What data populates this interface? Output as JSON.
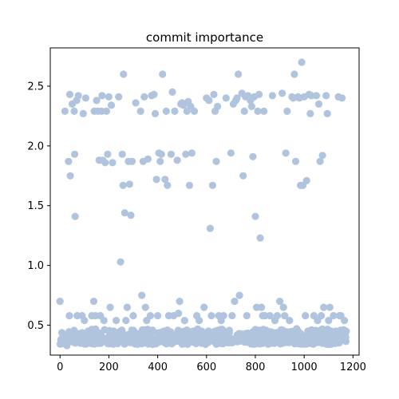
{
  "chart_data": {
    "type": "scatter",
    "title": "commit importance",
    "xlabel": "",
    "ylabel": "",
    "xlim": [
      -40,
      1225
    ],
    "ylim": [
      0.25,
      2.82
    ],
    "xticks": [
      0,
      200,
      400,
      600,
      800,
      1000,
      1200
    ],
    "xtick_labels": [
      "0",
      "200",
      "400",
      "600",
      "800",
      "1000",
      "1200"
    ],
    "yticks": [
      0.5,
      1.0,
      1.5,
      2.0,
      2.5
    ],
    "ytick_labels": [
      "0.5",
      "1.0",
      "1.5",
      "2.0",
      "2.5"
    ],
    "grid": false,
    "legend": "none",
    "marker_color": "#b0c4de",
    "series": [
      {
        "points": [
          [
            0,
            0.7
          ],
          [
            10,
            0.35
          ],
          [
            18,
            0.38
          ],
          [
            20,
            2.29
          ],
          [
            28,
            0.33
          ],
          [
            35,
            1.87
          ],
          [
            38,
            0.58
          ],
          [
            40,
            2.43
          ],
          [
            42,
            1.75
          ],
          [
            45,
            0.4
          ],
          [
            50,
            2.35
          ],
          [
            55,
            0.36
          ],
          [
            58,
            2.29
          ],
          [
            60,
            1.93
          ],
          [
            62,
            1.41
          ],
          [
            68,
            2.38
          ],
          [
            70,
            0.58
          ],
          [
            75,
            2.42
          ],
          [
            80,
            0.4
          ],
          [
            90,
            0.58
          ],
          [
            95,
            2.27
          ],
          [
            100,
            0.54
          ],
          [
            105,
            2.4
          ],
          [
            115,
            0.45
          ],
          [
            130,
            0.58
          ],
          [
            138,
            0.7
          ],
          [
            140,
            2.29
          ],
          [
            145,
            0.58
          ],
          [
            150,
            2.38
          ],
          [
            155,
            2.29
          ],
          [
            160,
            1.88
          ],
          [
            165,
            0.58
          ],
          [
            170,
            2.29
          ],
          [
            172,
            2.42
          ],
          [
            175,
            1.88
          ],
          [
            180,
            0.54
          ],
          [
            185,
            1.86
          ],
          [
            190,
            2.29
          ],
          [
            195,
            1.93
          ],
          [
            200,
            2.41
          ],
          [
            205,
            0.65
          ],
          [
            210,
            2.34
          ],
          [
            215,
            1.86
          ],
          [
            220,
            0.45
          ],
          [
            230,
            0.54
          ],
          [
            240,
            2.41
          ],
          [
            245,
            0.4
          ],
          [
            248,
            1.03
          ],
          [
            255,
            1.93
          ],
          [
            258,
            1.67
          ],
          [
            260,
            2.6
          ],
          [
            265,
            1.44
          ],
          [
            270,
            0.54
          ],
          [
            275,
            0.65
          ],
          [
            280,
            1.87
          ],
          [
            285,
            1.68
          ],
          [
            290,
            1.42
          ],
          [
            295,
            1.87
          ],
          [
            300,
            0.58
          ],
          [
            310,
            2.36
          ],
          [
            320,
            0.4
          ],
          [
            330,
            2.29
          ],
          [
            335,
            0.75
          ],
          [
            340,
            1.87
          ],
          [
            345,
            2.41
          ],
          [
            350,
            0.65
          ],
          [
            355,
            0.54
          ],
          [
            360,
            1.89
          ],
          [
            370,
            0.58
          ],
          [
            375,
            2.42
          ],
          [
            380,
            0.45
          ],
          [
            385,
            2.43
          ],
          [
            390,
            2.27
          ],
          [
            395,
            1.72
          ],
          [
            400,
            0.58
          ],
          [
            405,
            1.94
          ],
          [
            410,
            1.87
          ],
          [
            415,
            1.93
          ],
          [
            420,
            2.6
          ],
          [
            425,
            0.45
          ],
          [
            430,
            1.72
          ],
          [
            435,
            2.29
          ],
          [
            440,
            1.67
          ],
          [
            445,
            0.58
          ],
          [
            455,
            1.93
          ],
          [
            460,
            2.45
          ],
          [
            465,
            0.58
          ],
          [
            470,
            2.29
          ],
          [
            480,
            1.88
          ],
          [
            485,
            0.6
          ],
          [
            490,
            0.7
          ],
          [
            495,
            2.35
          ],
          [
            500,
            2.36
          ],
          [
            505,
            2.34
          ],
          [
            510,
            0.54
          ],
          [
            515,
            1.93
          ],
          [
            520,
            2.29
          ],
          [
            525,
            2.37
          ],
          [
            530,
            1.67
          ],
          [
            535,
            2.33
          ],
          [
            540,
            1.94
          ],
          [
            545,
            0.45
          ],
          [
            550,
            2.29
          ],
          [
            560,
            0.58
          ],
          [
            570,
            0.54
          ],
          [
            580,
            0.45
          ],
          [
            590,
            0.65
          ],
          [
            600,
            2.4
          ],
          [
            610,
            2.38
          ],
          [
            615,
            1.31
          ],
          [
            620,
            0.58
          ],
          [
            625,
            1.67
          ],
          [
            630,
            2.43
          ],
          [
            635,
            2.29
          ],
          [
            640,
            1.87
          ],
          [
            645,
            2.33
          ],
          [
            650,
            0.58
          ],
          [
            660,
            0.54
          ],
          [
            670,
            0.58
          ],
          [
            680,
            2.4
          ],
          [
            690,
            0.45
          ],
          [
            700,
            1.94
          ],
          [
            705,
            0.58
          ],
          [
            710,
            2.35
          ],
          [
            715,
            0.7
          ],
          [
            720,
            2.38
          ],
          [
            725,
            2.4
          ],
          [
            730,
            2.6
          ],
          [
            735,
            0.75
          ],
          [
            745,
            2.44
          ],
          [
            750,
            1.75
          ],
          [
            755,
            2.29
          ],
          [
            760,
            2.41
          ],
          [
            765,
            0.58
          ],
          [
            770,
            2.42
          ],
          [
            780,
            2.38
          ],
          [
            785,
            2.33
          ],
          [
            790,
            1.91
          ],
          [
            795,
            2.41
          ],
          [
            800,
            1.41
          ],
          [
            805,
            0.65
          ],
          [
            810,
            2.29
          ],
          [
            815,
            2.43
          ],
          [
            820,
            1.23
          ],
          [
            825,
            0.65
          ],
          [
            830,
            0.58
          ],
          [
            835,
            2.29
          ],
          [
            840,
            0.58
          ],
          [
            850,
            0.45
          ],
          [
            860,
            0.58
          ],
          [
            870,
            2.42
          ],
          [
            880,
            0.54
          ],
          [
            890,
            0.58
          ],
          [
            900,
            0.7
          ],
          [
            910,
            2.44
          ],
          [
            915,
            0.65
          ],
          [
            920,
            0.58
          ],
          [
            925,
            1.94
          ],
          [
            930,
            2.29
          ],
          [
            940,
            0.54
          ],
          [
            950,
            2.41
          ],
          [
            955,
            2.4
          ],
          [
            960,
            2.6
          ],
          [
            965,
            1.87
          ],
          [
            970,
            0.45
          ],
          [
            975,
            2.41
          ],
          [
            980,
            2.4
          ],
          [
            985,
            1.67
          ],
          [
            990,
            2.7
          ],
          [
            995,
            1.67
          ],
          [
            1000,
            2.41
          ],
          [
            1005,
            0.58
          ],
          [
            1010,
            1.71
          ],
          [
            1015,
            0.45
          ],
          [
            1020,
            2.43
          ],
          [
            1025,
            2.27
          ],
          [
            1030,
            2.42
          ],
          [
            1040,
            0.58
          ],
          [
            1050,
            2.42
          ],
          [
            1055,
            0.54
          ],
          [
            1060,
            2.35
          ],
          [
            1065,
            1.87
          ],
          [
            1070,
            0.58
          ],
          [
            1075,
            1.92
          ],
          [
            1080,
            0.65
          ],
          [
            1090,
            2.42
          ],
          [
            1095,
            2.27
          ],
          [
            1100,
            0.54
          ],
          [
            1105,
            0.65
          ],
          [
            1110,
            0.45
          ],
          [
            1120,
            0.58
          ],
          [
            1130,
            0.45
          ],
          [
            1140,
            2.41
          ],
          [
            1145,
            0.58
          ],
          [
            1150,
            0.58
          ],
          [
            1155,
            2.4
          ],
          [
            1160,
            0.45
          ],
          [
            1165,
            0.54
          ],
          [
            1170,
            0.4
          ],
          [
            1172,
            0.45
          ]
        ],
        "dense_band": {
          "x_range": [
            0,
            1172
          ],
          "y_range": [
            0.32,
            0.47
          ],
          "point_count": 620
        }
      }
    ]
  }
}
